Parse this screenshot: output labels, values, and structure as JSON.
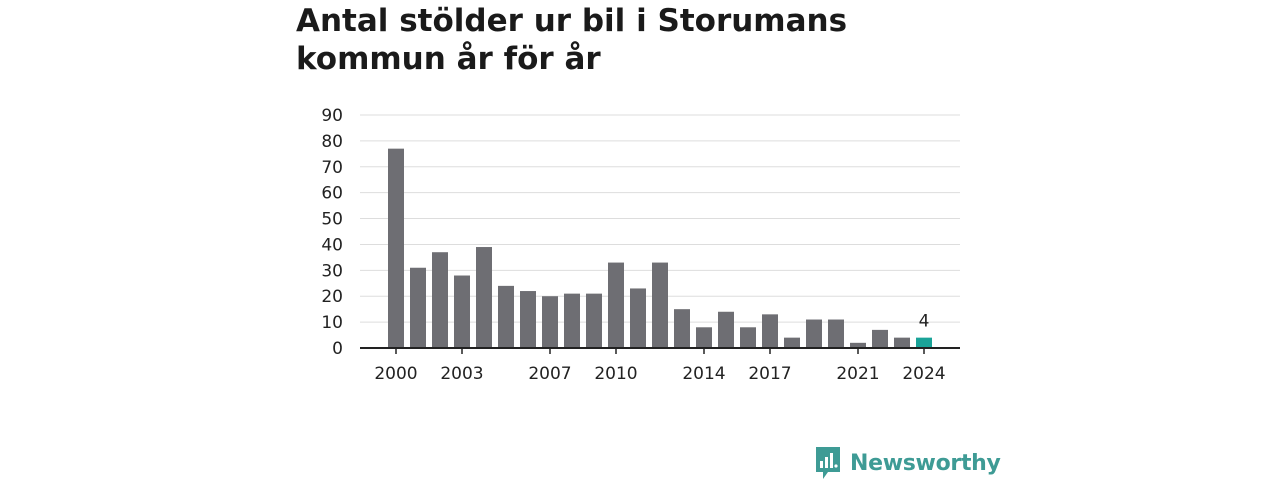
{
  "chart_data": {
    "type": "bar",
    "title_line1": "Antal stölder ur bil i Storumans",
    "title_line2": "kommun år för år",
    "xlabel": "",
    "ylabel": "",
    "ylim": [
      0,
      90
    ],
    "yticks": [
      0,
      10,
      20,
      30,
      40,
      50,
      60,
      70,
      80,
      90
    ],
    "grid": true,
    "categories": [
      2000,
      2001,
      2002,
      2003,
      2004,
      2005,
      2006,
      2007,
      2008,
      2009,
      2010,
      2011,
      2012,
      2013,
      2014,
      2015,
      2016,
      2017,
      2018,
      2019,
      2020,
      2021,
      2022,
      2023,
      2024
    ],
    "xtick_labels": [
      "2000",
      "2003",
      "2007",
      "2010",
      "2014",
      "2017",
      "2021",
      "2024"
    ],
    "values": [
      77,
      31,
      37,
      28,
      39,
      24,
      22,
      20,
      21,
      21,
      33,
      23,
      33,
      15,
      8,
      14,
      8,
      13,
      4,
      11,
      11,
      2,
      7,
      4,
      4
    ],
    "highlight_index": 24,
    "highlight_label": "4",
    "bar_color": "#6e6e73",
    "highlight_color": "#1aa398",
    "grid_color": "#dddddd",
    "axis_color": "#222222"
  },
  "brand": {
    "name": "Newsworthy",
    "color": "#3e9b95",
    "icon": "newsworthy-logo-icon"
  }
}
